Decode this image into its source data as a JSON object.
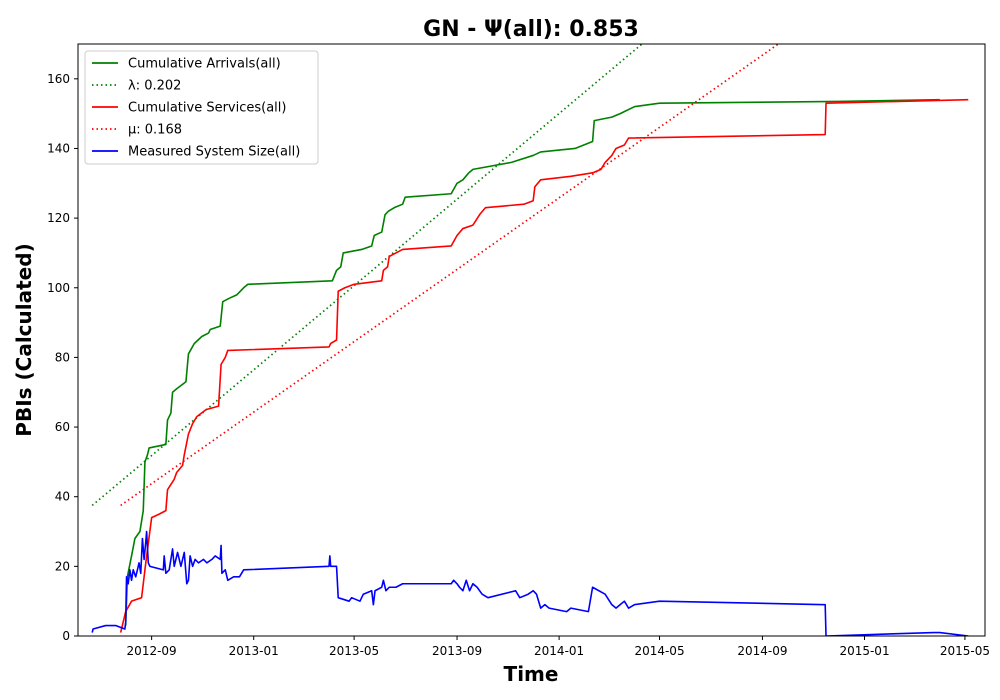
{
  "chart_data": {
    "type": "line",
    "title": "GN -  Ψ(all): 0.853",
    "xlabel": "Time",
    "ylabel": "PBIs (Calculated)",
    "xlim": [
      "2012-06-05",
      "2015-05-25"
    ],
    "ylim": [
      0,
      170
    ],
    "x_ticks": [
      "2012-09",
      "2013-01",
      "2013-05",
      "2013-09",
      "2014-01",
      "2014-05",
      "2014-09",
      "2015-01",
      "2015-05"
    ],
    "y_ticks": [
      0,
      20,
      40,
      60,
      80,
      100,
      120,
      140,
      160
    ],
    "legend_position": "upper-left",
    "series": [
      {
        "name": "Cumulative Arrivals(all)",
        "legend_label": "Cumulative Arrivals(all)",
        "color": "#008000",
        "style": "solid",
        "points": [
          [
            "2012-08-01",
            3
          ],
          [
            "2012-08-03",
            17
          ],
          [
            "2012-08-08",
            23
          ],
          [
            "2012-08-12",
            28
          ],
          [
            "2012-08-18",
            30
          ],
          [
            "2012-08-22",
            36
          ],
          [
            "2012-08-24",
            50
          ],
          [
            "2012-08-27",
            52
          ],
          [
            "2012-08-29",
            54
          ],
          [
            "2012-09-18",
            55
          ],
          [
            "2012-09-20",
            62
          ],
          [
            "2012-09-24",
            64
          ],
          [
            "2012-09-26",
            70
          ],
          [
            "2012-10-01",
            71
          ],
          [
            "2012-10-12",
            73
          ],
          [
            "2012-10-15",
            81
          ],
          [
            "2012-10-22",
            84
          ],
          [
            "2012-10-31",
            86
          ],
          [
            "2012-11-08",
            87
          ],
          [
            "2012-11-10",
            88
          ],
          [
            "2012-11-22",
            89
          ],
          [
            "2012-11-25",
            96
          ],
          [
            "2012-12-03",
            97
          ],
          [
            "2012-12-12",
            98
          ],
          [
            "2012-12-20",
            100
          ],
          [
            "2012-12-25",
            101
          ],
          [
            "2013-04-05",
            102
          ],
          [
            "2013-04-10",
            105
          ],
          [
            "2013-04-15",
            106
          ],
          [
            "2013-04-18",
            110
          ],
          [
            "2013-05-10",
            111
          ],
          [
            "2013-05-22",
            112
          ],
          [
            "2013-05-25",
            115
          ],
          [
            "2013-06-03",
            116
          ],
          [
            "2013-06-07",
            121
          ],
          [
            "2013-06-11",
            122
          ],
          [
            "2013-06-18",
            123
          ],
          [
            "2013-06-28",
            124
          ],
          [
            "2013-07-01",
            126
          ],
          [
            "2013-08-25",
            127
          ],
          [
            "2013-09-01",
            130
          ],
          [
            "2013-09-08",
            131
          ],
          [
            "2013-09-15",
            133
          ],
          [
            "2013-09-20",
            134
          ],
          [
            "2013-11-05",
            136
          ],
          [
            "2013-12-01",
            138
          ],
          [
            "2013-12-10",
            139
          ],
          [
            "2014-01-20",
            140
          ],
          [
            "2014-02-10",
            142
          ],
          [
            "2014-02-12",
            148
          ],
          [
            "2014-03-05",
            149
          ],
          [
            "2014-03-15",
            150
          ],
          [
            "2014-04-01",
            152
          ],
          [
            "2014-05-01",
            153
          ],
          [
            "2014-12-01",
            153.5
          ],
          [
            "2015-04-01",
            154
          ]
        ]
      },
      {
        "name": "lambda",
        "legend_label": "λ: 0.202",
        "color": "#008000",
        "style": "dotted",
        "points": [
          [
            "2012-06-22",
            37.5
          ],
          [
            "2014-04-10",
            170
          ]
        ]
      },
      {
        "name": "Cumulative Services(all)",
        "legend_label": "Cumulative Services(all)",
        "color": "#ff0000",
        "style": "solid",
        "points": [
          [
            "2012-07-26",
            1
          ],
          [
            "2012-08-01",
            7
          ],
          [
            "2012-08-08",
            10
          ],
          [
            "2012-08-20",
            11
          ],
          [
            "2012-08-25",
            21
          ],
          [
            "2012-09-01",
            34
          ],
          [
            "2012-09-10",
            35
          ],
          [
            "2012-09-18",
            36
          ],
          [
            "2012-09-20",
            42
          ],
          [
            "2012-09-28",
            45
          ],
          [
            "2012-10-01",
            47
          ],
          [
            "2012-10-08",
            49
          ],
          [
            "2012-10-10",
            52
          ],
          [
            "2012-10-15",
            58
          ],
          [
            "2012-10-20",
            61
          ],
          [
            "2012-10-25",
            63
          ],
          [
            "2012-11-05",
            65
          ],
          [
            "2012-11-20",
            66
          ],
          [
            "2012-11-23",
            78
          ],
          [
            "2012-11-28",
            80
          ],
          [
            "2012-12-01",
            82
          ],
          [
            "2013-04-01",
            83
          ],
          [
            "2013-04-03",
            84
          ],
          [
            "2013-04-10",
            85
          ],
          [
            "2013-04-12",
            99
          ],
          [
            "2013-04-20",
            100
          ],
          [
            "2013-05-01",
            101
          ],
          [
            "2013-06-03",
            102
          ],
          [
            "2013-06-05",
            105
          ],
          [
            "2013-06-10",
            106
          ],
          [
            "2013-06-12",
            109
          ],
          [
            "2013-06-20",
            110
          ],
          [
            "2013-06-28",
            111
          ],
          [
            "2013-08-25",
            112
          ],
          [
            "2013-09-01",
            115
          ],
          [
            "2013-09-08",
            117
          ],
          [
            "2013-09-20",
            118
          ],
          [
            "2013-09-28",
            121
          ],
          [
            "2013-10-05",
            123
          ],
          [
            "2013-11-20",
            124
          ],
          [
            "2013-12-01",
            125
          ],
          [
            "2013-12-03",
            129
          ],
          [
            "2013-12-10",
            131
          ],
          [
            "2014-01-15",
            132
          ],
          [
            "2014-02-10",
            133
          ],
          [
            "2014-02-20",
            134
          ],
          [
            "2014-02-25",
            136
          ],
          [
            "2014-03-05",
            138
          ],
          [
            "2014-03-10",
            140
          ],
          [
            "2014-03-20",
            141
          ],
          [
            "2014-03-25",
            143
          ],
          [
            "2014-11-15",
            144
          ],
          [
            "2014-11-16",
            153
          ],
          [
            "2015-05-05",
            154
          ]
        ]
      },
      {
        "name": "mu",
        "legend_label": "μ: 0.168",
        "color": "#ff0000",
        "style": "dotted",
        "points": [
          [
            "2012-07-26",
            37.5
          ],
          [
            "2014-09-20",
            170
          ]
        ]
      },
      {
        "name": "Measured System Size(all)",
        "legend_label": "Measured System Size(all)",
        "color": "#0000ff",
        "style": "solid",
        "points": [
          [
            "2012-06-22",
            1
          ],
          [
            "2012-06-23",
            2
          ],
          [
            "2012-07-08",
            3
          ],
          [
            "2012-07-20",
            3
          ],
          [
            "2012-07-31",
            2
          ],
          [
            "2012-08-01",
            4
          ],
          [
            "2012-08-02",
            17
          ],
          [
            "2012-08-04",
            15
          ],
          [
            "2012-08-06",
            19
          ],
          [
            "2012-08-08",
            16
          ],
          [
            "2012-08-10",
            19
          ],
          [
            "2012-08-13",
            17
          ],
          [
            "2012-08-15",
            19
          ],
          [
            "2012-08-17",
            21
          ],
          [
            "2012-08-19",
            18
          ],
          [
            "2012-08-21",
            28
          ],
          [
            "2012-08-23",
            22
          ],
          [
            "2012-08-25",
            27
          ],
          [
            "2012-08-26",
            30
          ],
          [
            "2012-08-28",
            21
          ],
          [
            "2012-08-30",
            20
          ],
          [
            "2012-09-15",
            19
          ],
          [
            "2012-09-16",
            23
          ],
          [
            "2012-09-18",
            18
          ],
          [
            "2012-09-22",
            19
          ],
          [
            "2012-09-26",
            25
          ],
          [
            "2012-09-28",
            20
          ],
          [
            "2012-10-02",
            24
          ],
          [
            "2012-10-06",
            20
          ],
          [
            "2012-10-10",
            24
          ],
          [
            "2012-10-13",
            15
          ],
          [
            "2012-10-15",
            16
          ],
          [
            "2012-10-17",
            23
          ],
          [
            "2012-10-20",
            20
          ],
          [
            "2012-10-23",
            22
          ],
          [
            "2012-10-27",
            21
          ],
          [
            "2012-11-02",
            22
          ],
          [
            "2012-11-06",
            21
          ],
          [
            "2012-11-12",
            22
          ],
          [
            "2012-11-16",
            23
          ],
          [
            "2012-11-22",
            22
          ],
          [
            "2012-11-23",
            26
          ],
          [
            "2012-11-24",
            18
          ],
          [
            "2012-11-28",
            19
          ],
          [
            "2012-12-01",
            16
          ],
          [
            "2012-12-08",
            17
          ],
          [
            "2012-12-15",
            17
          ],
          [
            "2012-12-20",
            19
          ],
          [
            "2013-04-01",
            20
          ],
          [
            "2013-04-02",
            23
          ],
          [
            "2013-04-03",
            20
          ],
          [
            "2013-04-10",
            20
          ],
          [
            "2013-04-12",
            11
          ],
          [
            "2013-04-25",
            10
          ],
          [
            "2013-04-28",
            11
          ],
          [
            "2013-05-08",
            10
          ],
          [
            "2013-05-12",
            12
          ],
          [
            "2013-05-22",
            13
          ],
          [
            "2013-05-24",
            9
          ],
          [
            "2013-05-26",
            13
          ],
          [
            "2013-06-03",
            14
          ],
          [
            "2013-06-05",
            16
          ],
          [
            "2013-06-08",
            13
          ],
          [
            "2013-06-12",
            14
          ],
          [
            "2013-06-20",
            14
          ],
          [
            "2013-06-28",
            15
          ],
          [
            "2013-08-25",
            15
          ],
          [
            "2013-08-28",
            16
          ],
          [
            "2013-09-01",
            15
          ],
          [
            "2013-09-04",
            14
          ],
          [
            "2013-09-08",
            13
          ],
          [
            "2013-09-12",
            16
          ],
          [
            "2013-09-16",
            13
          ],
          [
            "2013-09-20",
            15
          ],
          [
            "2013-09-25",
            14
          ],
          [
            "2013-10-01",
            12
          ],
          [
            "2013-10-08",
            11
          ],
          [
            "2013-11-10",
            13
          ],
          [
            "2013-11-15",
            11
          ],
          [
            "2013-11-25",
            12
          ],
          [
            "2013-12-01",
            13
          ],
          [
            "2013-12-05",
            12
          ],
          [
            "2013-12-10",
            8
          ],
          [
            "2013-12-15",
            9
          ],
          [
            "2013-12-20",
            8
          ],
          [
            "2014-01-10",
            7
          ],
          [
            "2014-01-15",
            8
          ],
          [
            "2014-02-05",
            7
          ],
          [
            "2014-02-10",
            14
          ],
          [
            "2014-02-25",
            12
          ],
          [
            "2014-03-05",
            9
          ],
          [
            "2014-03-10",
            8
          ],
          [
            "2014-03-15",
            9
          ],
          [
            "2014-03-20",
            10
          ],
          [
            "2014-03-25",
            8
          ],
          [
            "2014-04-01",
            9
          ],
          [
            "2014-05-01",
            10
          ],
          [
            "2014-11-15",
            9
          ],
          [
            "2014-11-16",
            0
          ],
          [
            "2015-03-25",
            1
          ],
          [
            "2015-04-01",
            1
          ],
          [
            "2015-05-05",
            0
          ]
        ]
      }
    ]
  }
}
